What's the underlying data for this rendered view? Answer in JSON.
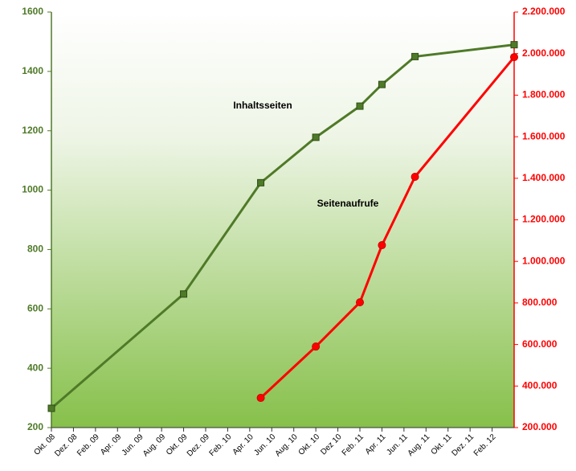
{
  "chart_data": {
    "type": "line",
    "xlim": [
      "2008-10",
      "2012-04"
    ],
    "xticks": [
      {
        "value": "2008-10",
        "label": "Okt. 08"
      },
      {
        "value": "2008-12",
        "label": "Dez. 08"
      },
      {
        "value": "2009-02",
        "label": "Feb. 09"
      },
      {
        "value": "2009-04",
        "label": "Apr. 09"
      },
      {
        "value": "2009-06",
        "label": "Jun. 09"
      },
      {
        "value": "2009-08",
        "label": "Aug. 09"
      },
      {
        "value": "2009-10",
        "label": "Okt. 09"
      },
      {
        "value": "2009-12",
        "label": "Dez. 09"
      },
      {
        "value": "2010-02",
        "label": "Feb. 10"
      },
      {
        "value": "2010-04",
        "label": "Apr. 10"
      },
      {
        "value": "2010-06",
        "label": "Jun. 10"
      },
      {
        "value": "2010-08",
        "label": "Aug. 10"
      },
      {
        "value": "2010-10",
        "label": "Okt. 10"
      },
      {
        "value": "2010-12",
        "label": "Dez 10"
      },
      {
        "value": "2011-02",
        "label": "Feb. 11"
      },
      {
        "value": "2011-04",
        "label": "Apr. 11"
      },
      {
        "value": "2011-06",
        "label": "Jun. 11"
      },
      {
        "value": "2011-08",
        "label": "Aug. 11"
      },
      {
        "value": "2011-10",
        "label": "Okt. 11"
      },
      {
        "value": "2011-12",
        "label": "Dez. 11"
      },
      {
        "value": "2012-02",
        "label": "Feb. 12"
      }
    ],
    "ylim": [
      200,
      1600
    ],
    "yticks": [
      200,
      400,
      600,
      800,
      1000,
      1200,
      1400,
      1600
    ],
    "y2lim": [
      200000,
      2200000
    ],
    "y2ticks": [
      {
        "value": 200000,
        "label": "200.000"
      },
      {
        "value": 400000,
        "label": "400.000"
      },
      {
        "value": 600000,
        "label": "600.000"
      },
      {
        "value": 800000,
        "label": "800.000"
      },
      {
        "value": 1000000,
        "label": "1.000.000"
      },
      {
        "value": 1200000,
        "label": "1.200.000"
      },
      {
        "value": 1400000,
        "label": "1.400.000"
      },
      {
        "value": 1600000,
        "label": "1.600.000"
      },
      {
        "value": 1800000,
        "label": "1.800.000"
      },
      {
        "value": 2000000,
        "label": "2.000.000"
      },
      {
        "value": 2200000,
        "label": "2.200.000"
      }
    ],
    "series": [
      {
        "name": "Inhaltsseiten",
        "color": "#4f7a28",
        "axis": "y",
        "x": [
          "2008-10",
          "2009-10",
          "2010-05",
          "2010-10",
          "2011-02",
          "2011-04",
          "2011-07",
          "2012-04"
        ],
        "values": [
          265,
          650,
          1025,
          1178,
          1283,
          1356,
          1450,
          1490
        ]
      },
      {
        "name": "Seitenaufrufe",
        "color": "#ff0000",
        "axis": "y2",
        "x": [
          "2010-05",
          "2010-10",
          "2011-02",
          "2011-04",
          "2011-07",
          "2012-04"
        ],
        "values": [
          343000,
          590000,
          803000,
          1078000,
          1407000,
          1983000
        ]
      }
    ]
  }
}
